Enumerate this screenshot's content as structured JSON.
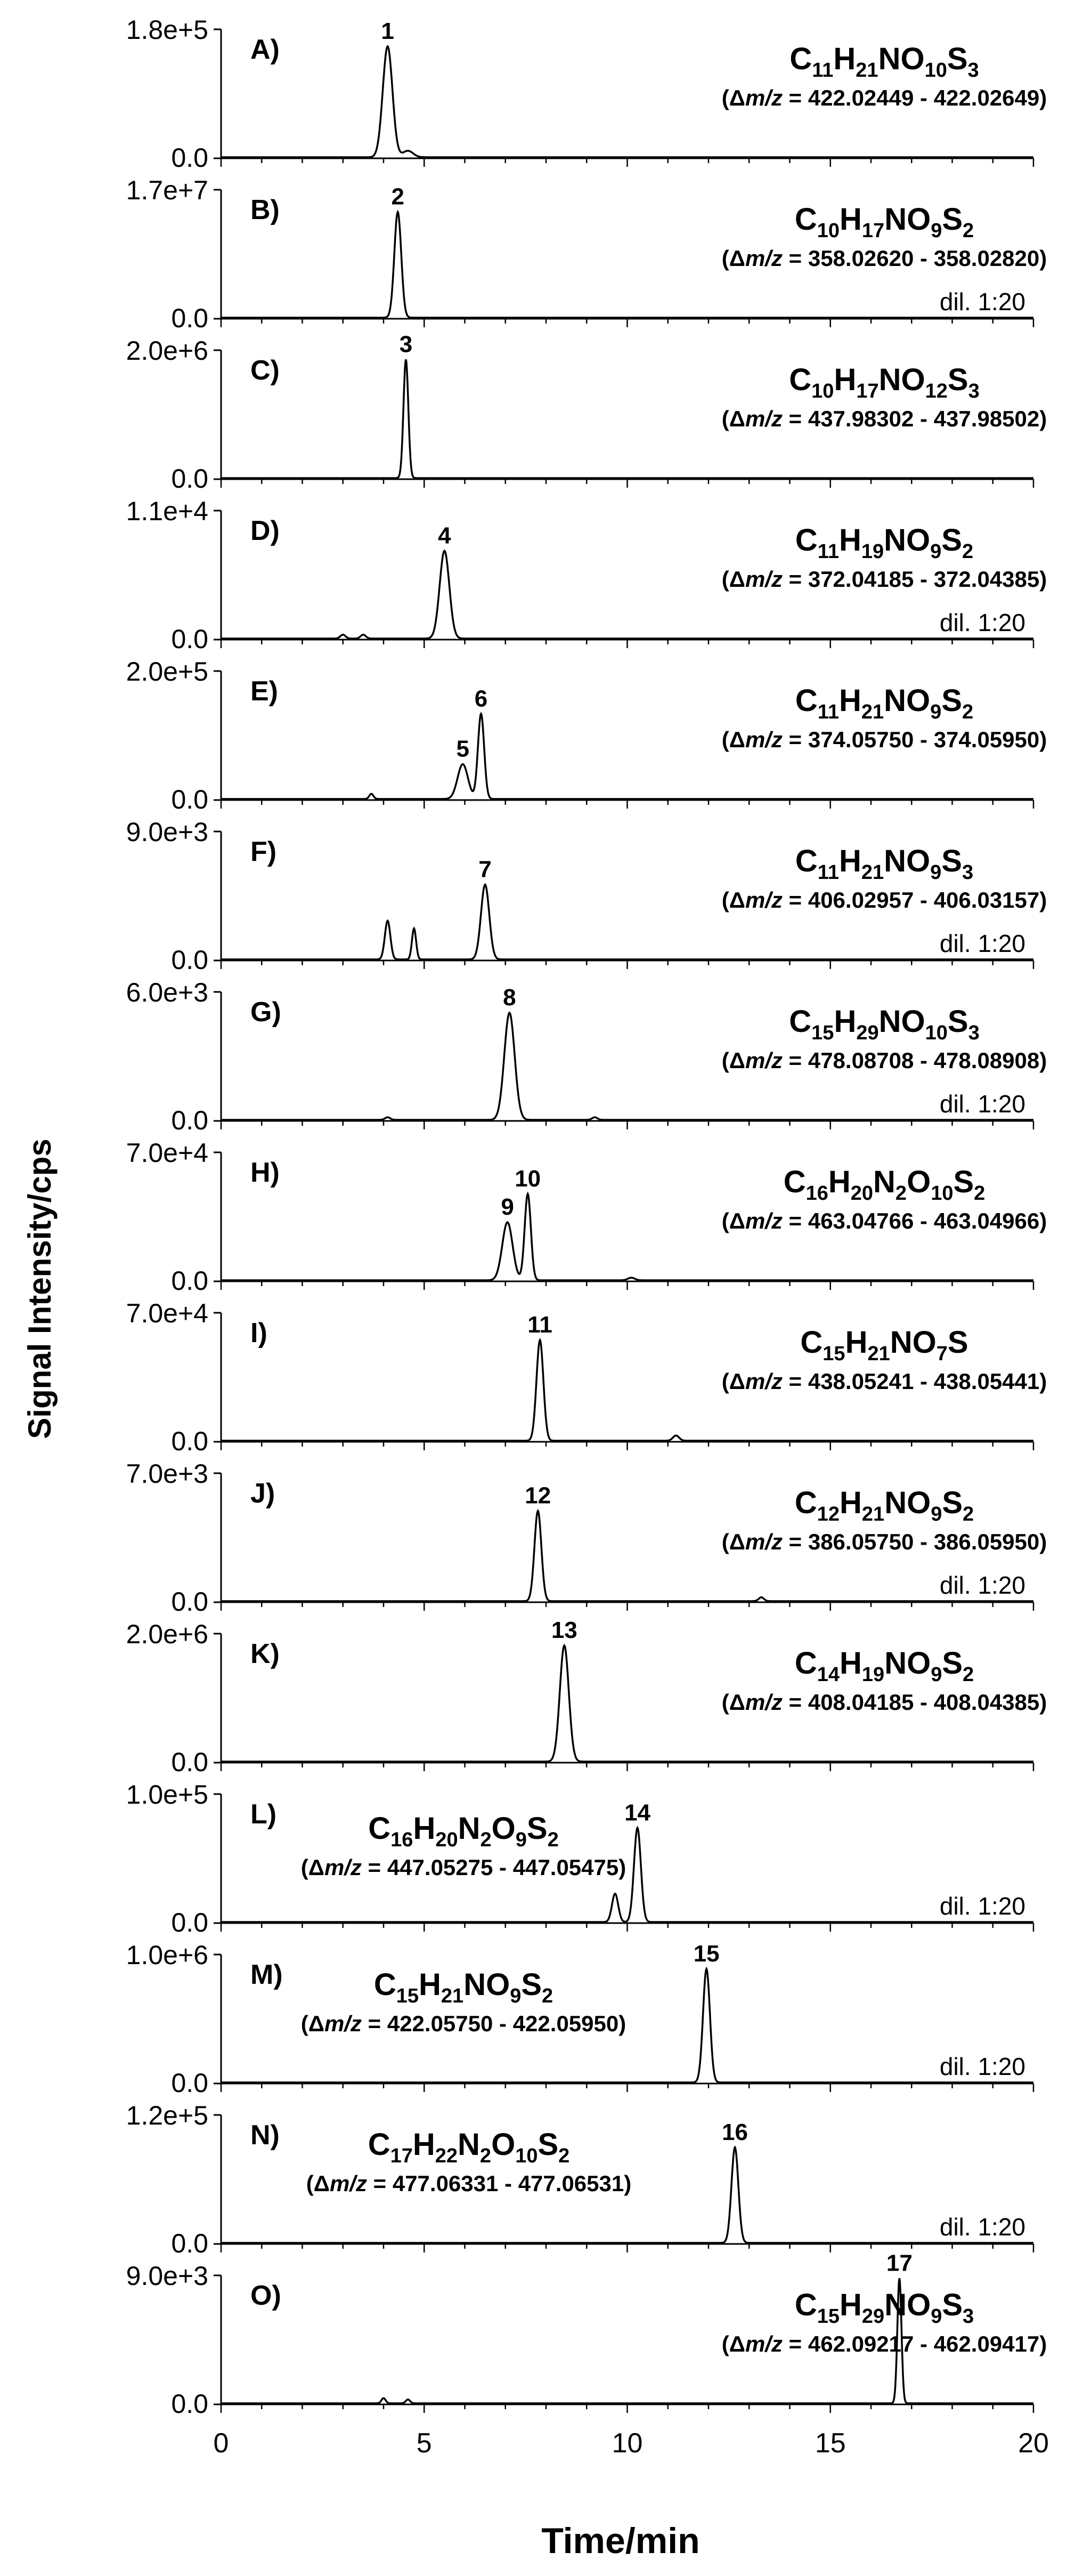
{
  "figure": {
    "ylabel": "Signal Intensity/cps",
    "xlabel": "Time/min"
  },
  "chart_data": [
    {
      "type": "line",
      "panel": "A)",
      "ymax_label": "1.8e+5",
      "ymin_label": "0.0",
      "formula_html": "C<tspan class='sub'>11</tspan>H<tspan class='sub'>21</tspan>NO<tspan class='sub'>10</tspan>S<tspan class='sub'>3</tspan>",
      "formula": [
        "C",
        "11",
        "H",
        "21",
        "NO",
        "10",
        "S",
        "3"
      ],
      "mz_range": "422.02449 - 422.02649",
      "dilution": "",
      "peaks": [
        {
          "label": "1",
          "rt": 4.1,
          "height": 0.86,
          "width": 0.28
        }
      ],
      "minor": [
        {
          "rt": 4.6,
          "height": 0.05,
          "width": 0.3
        }
      ],
      "xlim": [
        0,
        20
      ]
    },
    {
      "type": "line",
      "panel": "B)",
      "ymax_label": "1.7e+7",
      "ymin_label": "0.0",
      "formula": [
        "C",
        "10",
        "H",
        "17",
        "NO",
        "9",
        "S",
        "2"
      ],
      "mz_range": "358.02620 - 358.02820",
      "dilution": "dil. 1:20",
      "peaks": [
        {
          "label": "2",
          "rt": 4.35,
          "height": 0.82,
          "width": 0.2
        }
      ],
      "minor": [],
      "xlim": [
        0,
        20
      ]
    },
    {
      "type": "line",
      "panel": "C)",
      "ymax_label": "2.0e+6",
      "ymin_label": "0.0",
      "formula": [
        "C",
        "10",
        "H",
        "17",
        "NO",
        "12",
        "S",
        "3"
      ],
      "mz_range": "437.98302 - 437.98502",
      "dilution": "",
      "peaks": [
        {
          "label": "3",
          "rt": 4.55,
          "height": 0.92,
          "width": 0.14
        }
      ],
      "minor": [],
      "xlim": [
        0,
        20
      ]
    },
    {
      "type": "line",
      "panel": "D)",
      "ymax_label": "1.1e+4",
      "ymin_label": "0.0",
      "formula": [
        "C",
        "11",
        "H",
        "19",
        "NO",
        "9",
        "S",
        "2"
      ],
      "mz_range": "372.04185 - 372.04385",
      "dilution": "dil. 1:20",
      "peaks": [
        {
          "label": "4",
          "rt": 5.5,
          "height": 0.68,
          "width": 0.28
        }
      ],
      "minor": [
        {
          "rt": 3.0,
          "height": 0.03,
          "width": 0.15
        },
        {
          "rt": 3.5,
          "height": 0.03,
          "width": 0.15
        }
      ],
      "xlim": [
        0,
        20
      ]
    },
    {
      "type": "line",
      "panel": "E)",
      "ymax_label": "2.0e+5",
      "ymin_label": "0.0",
      "formula": [
        "C",
        "11",
        "H",
        "21",
        "NO",
        "9",
        "S",
        "2"
      ],
      "mz_range": "374.05750 - 374.05950",
      "dilution": "",
      "peaks": [
        {
          "label": "5",
          "rt": 5.95,
          "height": 0.27,
          "width": 0.3
        },
        {
          "label": "6",
          "rt": 6.4,
          "height": 0.66,
          "width": 0.18
        }
      ],
      "minor": [
        {
          "rt": 3.7,
          "height": 0.04,
          "width": 0.12
        }
      ],
      "xlim": [
        0,
        20
      ]
    },
    {
      "type": "line",
      "panel": "F)",
      "ymax_label": "9.0e+3",
      "ymin_label": "0.0",
      "formula": [
        "C",
        "11",
        "H",
        "21",
        "NO",
        "9",
        "S",
        "3"
      ],
      "mz_range": "406.02957 - 406.03157",
      "dilution": "dil. 1:20",
      "peaks": [
        {
          "label": "7",
          "rt": 6.5,
          "height": 0.58,
          "width": 0.24
        }
      ],
      "minor": [
        {
          "rt": 4.1,
          "height": 0.3,
          "width": 0.16
        },
        {
          "rt": 4.75,
          "height": 0.24,
          "width": 0.12
        }
      ],
      "xlim": [
        0,
        20
      ]
    },
    {
      "type": "line",
      "panel": "G)",
      "ymax_label": "6.0e+3",
      "ymin_label": "0.0",
      "formula": [
        "C",
        "15",
        "H",
        "29",
        "NO",
        "10",
        "S",
        "3"
      ],
      "mz_range": "478.08708 - 478.08908",
      "dilution": "dil. 1:20",
      "peaks": [
        {
          "label": "8",
          "rt": 7.1,
          "height": 0.83,
          "width": 0.3
        }
      ],
      "minor": [
        {
          "rt": 4.1,
          "height": 0.02,
          "width": 0.15
        },
        {
          "rt": 9.2,
          "height": 0.02,
          "width": 0.15
        }
      ],
      "xlim": [
        0,
        20
      ]
    },
    {
      "type": "line",
      "panel": "H)",
      "ymax_label": "7.0e+4",
      "ymin_label": "0.0",
      "formula": [
        "C",
        "16",
        "H",
        "20",
        "N",
        "2",
        "O",
        "10",
        "S",
        "2"
      ],
      "mz_range": "463.04766 - 463.04966",
      "dilution": "",
      "peaks": [
        {
          "label": "9",
          "rt": 7.05,
          "height": 0.45,
          "width": 0.3
        },
        {
          "label": "10",
          "rt": 7.55,
          "height": 0.67,
          "width": 0.18
        }
      ],
      "minor": [
        {
          "rt": 10.1,
          "height": 0.02,
          "width": 0.2
        }
      ],
      "xlim": [
        0,
        20
      ]
    },
    {
      "type": "line",
      "panel": "I)",
      "ymax_label": "7.0e+4",
      "ymin_label": "0.0",
      "formula": [
        "C",
        "15",
        "H",
        "21",
        "NO",
        "7",
        "S"
      ],
      "mz_range": "438.05241 - 438.05441",
      "dilution": "",
      "peaks": [
        {
          "label": "11",
          "rt": 7.85,
          "height": 0.78,
          "width": 0.2
        }
      ],
      "minor": [
        {
          "rt": 11.2,
          "height": 0.04,
          "width": 0.18
        }
      ],
      "xlim": [
        0,
        20
      ]
    },
    {
      "type": "line",
      "panel": "J)",
      "ymax_label": "7.0e+3",
      "ymin_label": "0.0",
      "formula": [
        "C",
        "12",
        "H",
        "21",
        "NO",
        "9",
        "S",
        "2"
      ],
      "mz_range": "386.05750 - 386.05950",
      "dilution": "dil. 1:20",
      "peaks": [
        {
          "label": "12",
          "rt": 7.8,
          "height": 0.7,
          "width": 0.2
        }
      ],
      "minor": [
        {
          "rt": 13.3,
          "height": 0.03,
          "width": 0.15
        }
      ],
      "xlim": [
        0,
        20
      ]
    },
    {
      "type": "line",
      "panel": "K)",
      "ymax_label": "2.0e+6",
      "ymin_label": "0.0",
      "formula": [
        "C",
        "14",
        "H",
        "19",
        "NO",
        "9",
        "S",
        "2"
      ],
      "mz_range": "408.04185 - 408.04385",
      "dilution": "",
      "peaks": [
        {
          "label": "13",
          "rt": 8.45,
          "height": 0.9,
          "width": 0.26
        }
      ],
      "minor": [],
      "xlim": [
        0,
        20
      ]
    },
    {
      "type": "line",
      "panel": "L)",
      "ymax_label": "1.0e+5",
      "ymin_label": "0.0",
      "formula": [
        "C",
        "16",
        "H",
        "20",
        "N",
        "2",
        "O",
        "9",
        "S",
        "2"
      ],
      "mz_range": "447.05275 - 447.05475",
      "dilution": "dil. 1:20",
      "peaks": [
        {
          "label": "14",
          "rt": 10.25,
          "height": 0.73,
          "width": 0.2
        }
      ],
      "minor": [
        {
          "rt": 9.7,
          "height": 0.22,
          "width": 0.18
        }
      ],
      "xlim": [
        0,
        20
      ]
    },
    {
      "type": "line",
      "panel": "M)",
      "ymax_label": "1.0e+6",
      "ymin_label": "0.0",
      "formula": [
        "C",
        "15",
        "H",
        "21",
        "NO",
        "9",
        "S",
        "2"
      ],
      "mz_range": "422.05750 - 422.05950",
      "dilution": "dil. 1:20",
      "peaks": [
        {
          "label": "15",
          "rt": 11.95,
          "height": 0.88,
          "width": 0.2
        }
      ],
      "minor": [],
      "xlim": [
        0,
        20
      ]
    },
    {
      "type": "line",
      "panel": "N)",
      "ymax_label": "1.2e+5",
      "ymin_label": "0.0",
      "formula": [
        "C",
        "17",
        "H",
        "22",
        "N",
        "2",
        "O",
        "10",
        "S",
        "2"
      ],
      "mz_range": "477.06331 - 477.06531",
      "dilution": "dil. 1:20",
      "peaks": [
        {
          "label": "16",
          "rt": 12.65,
          "height": 0.74,
          "width": 0.2
        }
      ],
      "minor": [],
      "xlim": [
        0,
        20
      ]
    },
    {
      "type": "line",
      "panel": "O)",
      "ymax_label": "9.0e+3",
      "ymin_label": "0.0",
      "formula": [
        "C",
        "15",
        "H",
        "29",
        "NO",
        "9",
        "S",
        "3"
      ],
      "mz_range": "462.09217 - 462.09417",
      "dilution": "",
      "peaks": [
        {
          "label": "17",
          "rt": 16.7,
          "height": 0.97,
          "width": 0.12
        }
      ],
      "minor": [
        {
          "rt": 4.0,
          "height": 0.04,
          "width": 0.12
        },
        {
          "rt": 4.6,
          "height": 0.03,
          "width": 0.12
        }
      ],
      "xlim": [
        0,
        20
      ]
    }
  ],
  "x_axis": {
    "ticks": [
      "0",
      "5",
      "10",
      "15",
      "20"
    ]
  }
}
